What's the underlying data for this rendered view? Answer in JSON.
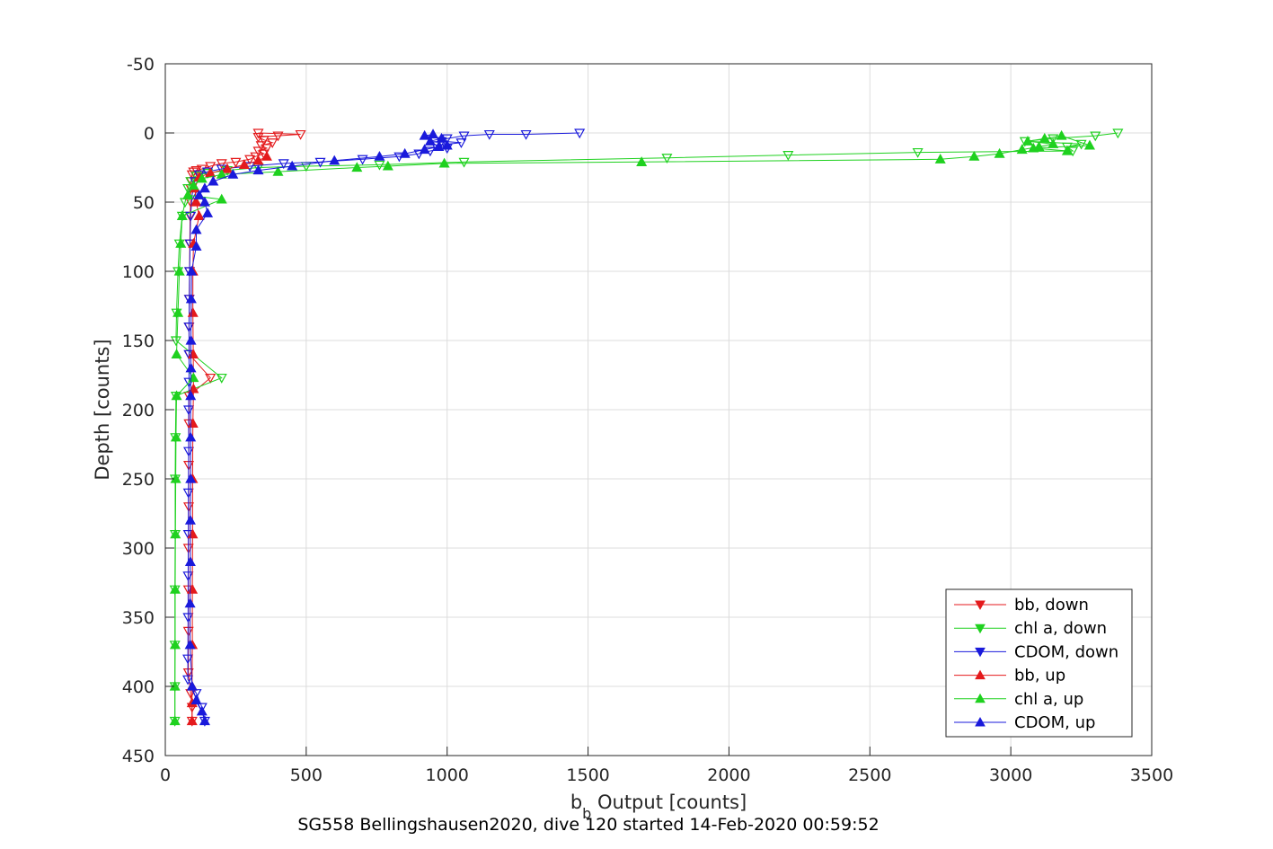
{
  "chart_data": {
    "type": "line",
    "xlabel_main": "b",
    "xlabel_sub": "b",
    "xlabel_rest": " Output [counts]",
    "ylabel": "Depth [counts]",
    "caption": "SG558 Bellingshausen2020, dive 120 started 14-Feb-2020 00:59:52",
    "xlim": [
      0,
      3500
    ],
    "ylim": [
      -50,
      450
    ],
    "y_reversed": true,
    "grid": true,
    "legend_position": "bottom-right",
    "xticks": [
      "0",
      "500",
      "1000",
      "1500",
      "2000",
      "2500",
      "3000",
      "3500"
    ],
    "yticks": [
      "-50",
      "0",
      "50",
      "100",
      "150",
      "200",
      "250",
      "300",
      "350",
      "400",
      "450"
    ],
    "series": [
      {
        "name": "bb, down",
        "color": "#e41a1c",
        "marker": "triangle-down",
        "points": [
          [
            330,
            0
          ],
          [
            480,
            1
          ],
          [
            400,
            2
          ],
          [
            330,
            3
          ],
          [
            350,
            5
          ],
          [
            380,
            7
          ],
          [
            340,
            9
          ],
          [
            360,
            11
          ],
          [
            330,
            13
          ],
          [
            350,
            15
          ],
          [
            320,
            17
          ],
          [
            300,
            19
          ],
          [
            250,
            21
          ],
          [
            200,
            22
          ],
          [
            160,
            24
          ],
          [
            130,
            26
          ],
          [
            110,
            27
          ],
          [
            100,
            28
          ],
          [
            95,
            30
          ],
          [
            92,
            35
          ],
          [
            90,
            40
          ],
          [
            90,
            50
          ],
          [
            88,
            60
          ],
          [
            87,
            80
          ],
          [
            86,
            100
          ],
          [
            85,
            120
          ],
          [
            84,
            140
          ],
          [
            85,
            160
          ],
          [
            160,
            177
          ],
          [
            84,
            190
          ],
          [
            84,
            210
          ],
          [
            83,
            240
          ],
          [
            83,
            270
          ],
          [
            82,
            300
          ],
          [
            82,
            330
          ],
          [
            82,
            360
          ],
          [
            82,
            390
          ],
          [
            90,
            405
          ],
          [
            95,
            415
          ],
          [
            95,
            425
          ]
        ]
      },
      {
        "name": "chl a, down",
        "color": "#1fd11f",
        "marker": "triangle-down",
        "points": [
          [
            3380,
            0
          ],
          [
            3300,
            2
          ],
          [
            3150,
            4
          ],
          [
            3050,
            6
          ],
          [
            3250,
            8
          ],
          [
            3200,
            10
          ],
          [
            3220,
            13
          ],
          [
            2670,
            14
          ],
          [
            2210,
            16
          ],
          [
            1780,
            18
          ],
          [
            1060,
            21
          ],
          [
            760,
            23
          ],
          [
            500,
            24
          ],
          [
            330,
            25
          ],
          [
            220,
            27
          ],
          [
            150,
            29
          ],
          [
            110,
            31
          ],
          [
            90,
            35
          ],
          [
            80,
            40
          ],
          [
            70,
            50
          ],
          [
            60,
            60
          ],
          [
            50,
            80
          ],
          [
            45,
            100
          ],
          [
            40,
            130
          ],
          [
            38,
            150
          ],
          [
            200,
            177
          ],
          [
            38,
            190
          ],
          [
            36,
            220
          ],
          [
            35,
            250
          ],
          [
            35,
            290
          ],
          [
            34,
            330
          ],
          [
            34,
            370
          ],
          [
            34,
            400
          ],
          [
            34,
            425
          ]
        ]
      },
      {
        "name": "CDOM, down",
        "color": "#1a1adb",
        "marker": "triangle-down",
        "points": [
          [
            1470,
            0
          ],
          [
            1280,
            1
          ],
          [
            1150,
            1
          ],
          [
            1060,
            2
          ],
          [
            1000,
            4
          ],
          [
            980,
            6
          ],
          [
            1050,
            7
          ],
          [
            960,
            9
          ],
          [
            1000,
            11
          ],
          [
            940,
            13
          ],
          [
            900,
            15
          ],
          [
            830,
            17
          ],
          [
            700,
            19
          ],
          [
            550,
            21
          ],
          [
            420,
            22
          ],
          [
            300,
            24
          ],
          [
            200,
            26
          ],
          [
            150,
            28
          ],
          [
            120,
            30
          ],
          [
            105,
            35
          ],
          [
            95,
            45
          ],
          [
            90,
            60
          ],
          [
            88,
            80
          ],
          [
            86,
            100
          ],
          [
            85,
            120
          ],
          [
            84,
            140
          ],
          [
            84,
            160
          ],
          [
            84,
            180
          ],
          [
            83,
            200
          ],
          [
            83,
            230
          ],
          [
            82,
            260
          ],
          [
            82,
            290
          ],
          [
            81,
            320
          ],
          [
            81,
            350
          ],
          [
            80,
            380
          ],
          [
            80,
            395
          ],
          [
            110,
            405
          ],
          [
            130,
            415
          ],
          [
            140,
            425
          ]
        ]
      },
      {
        "name": "bb, up",
        "color": "#e41a1c",
        "marker": "triangle-up",
        "points": [
          [
            95,
            425
          ],
          [
            95,
            412
          ],
          [
            95,
            400
          ],
          [
            96,
            370
          ],
          [
            96,
            330
          ],
          [
            97,
            290
          ],
          [
            97,
            250
          ],
          [
            98,
            210
          ],
          [
            100,
            185
          ],
          [
            99,
            160
          ],
          [
            98,
            130
          ],
          [
            98,
            100
          ],
          [
            100,
            80
          ],
          [
            120,
            60
          ],
          [
            110,
            50
          ],
          [
            105,
            40
          ],
          [
            120,
            32
          ],
          [
            160,
            29
          ],
          [
            220,
            26
          ],
          [
            280,
            23
          ],
          [
            330,
            20
          ],
          [
            360,
            17
          ]
        ]
      },
      {
        "name": "chl a, up",
        "color": "#1fd11f",
        "marker": "triangle-up",
        "points": [
          [
            34,
            425
          ],
          [
            34,
            400
          ],
          [
            35,
            370
          ],
          [
            35,
            330
          ],
          [
            36,
            290
          ],
          [
            37,
            250
          ],
          [
            38,
            220
          ],
          [
            40,
            190
          ],
          [
            100,
            177
          ],
          [
            40,
            160
          ],
          [
            45,
            130
          ],
          [
            50,
            100
          ],
          [
            55,
            80
          ],
          [
            60,
            60
          ],
          [
            200,
            48
          ],
          [
            80,
            45
          ],
          [
            100,
            38
          ],
          [
            130,
            33
          ],
          [
            200,
            30
          ],
          [
            400,
            28
          ],
          [
            680,
            25
          ],
          [
            790,
            24
          ],
          [
            990,
            22
          ],
          [
            1690,
            21
          ],
          [
            2750,
            19
          ],
          [
            2870,
            17
          ],
          [
            2960,
            15
          ],
          [
            3040,
            12
          ],
          [
            3100,
            10
          ],
          [
            3150,
            8
          ],
          [
            3060,
            6
          ],
          [
            3120,
            4
          ],
          [
            3180,
            2
          ],
          [
            3280,
            9
          ],
          [
            3080,
            11
          ],
          [
            3200,
            13
          ]
        ]
      },
      {
        "name": "CDOM, up",
        "color": "#1a1adb",
        "marker": "triangle-up",
        "points": [
          [
            140,
            425
          ],
          [
            130,
            418
          ],
          [
            110,
            410
          ],
          [
            95,
            400
          ],
          [
            88,
            370
          ],
          [
            88,
            340
          ],
          [
            89,
            310
          ],
          [
            89,
            280
          ],
          [
            90,
            250
          ],
          [
            90,
            220
          ],
          [
            90,
            190
          ],
          [
            91,
            170
          ],
          [
            91,
            150
          ],
          [
            92,
            120
          ],
          [
            93,
            100
          ],
          [
            110,
            82
          ],
          [
            110,
            70
          ],
          [
            150,
            58
          ],
          [
            140,
            50
          ],
          [
            120,
            45
          ],
          [
            140,
            40
          ],
          [
            170,
            35
          ],
          [
            240,
            30
          ],
          [
            330,
            27
          ],
          [
            450,
            24
          ],
          [
            600,
            20
          ],
          [
            760,
            17
          ],
          [
            850,
            15
          ],
          [
            920,
            12
          ],
          [
            970,
            10
          ],
          [
            940,
            6
          ],
          [
            980,
            4
          ],
          [
            920,
            2
          ],
          [
            950,
            1
          ],
          [
            1000,
            9
          ]
        ]
      }
    ]
  }
}
